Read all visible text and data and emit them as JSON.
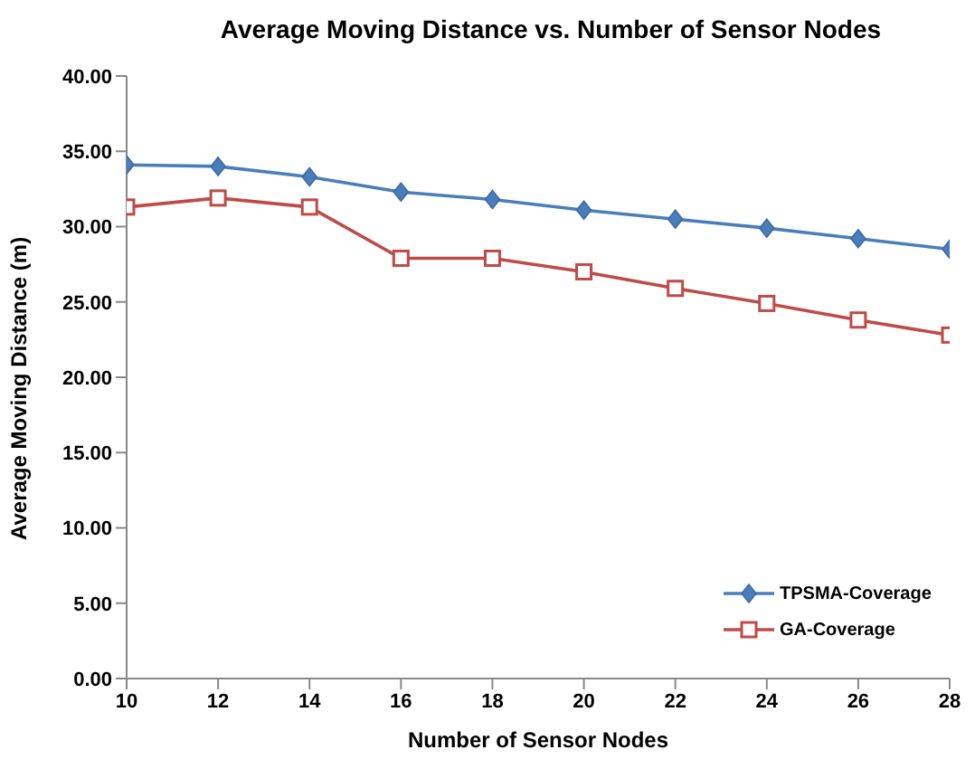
{
  "chart_data": {
    "type": "line",
    "title": "Average Moving Distance vs. Number of Sensor Nodes",
    "xlabel": "Number of Sensor Nodes",
    "ylabel": "Average Moving Distance (m)",
    "x": [
      10,
      12,
      14,
      16,
      18,
      20,
      22,
      24,
      26,
      28
    ],
    "series": [
      {
        "name": "TPSMA-Coverage",
        "color": "#4a7ebb",
        "marker": "diamond",
        "values": [
          34.1,
          34.0,
          33.3,
          32.3,
          31.8,
          31.1,
          30.5,
          29.9,
          29.2,
          28.5
        ]
      },
      {
        "name": "GA-Coverage",
        "color": "#be4b48",
        "marker": "square",
        "values": [
          31.3,
          31.9,
          31.3,
          27.9,
          27.9,
          27.0,
          25.9,
          24.9,
          23.8,
          22.8
        ]
      }
    ],
    "xlim": [
      10,
      28
    ],
    "xticks": [
      10,
      12,
      14,
      16,
      18,
      20,
      22,
      24,
      26,
      28
    ],
    "ylim": [
      0,
      40
    ],
    "yticks": [
      {
        "value": 0,
        "label": "0.00"
      },
      {
        "value": 5,
        "label": "5.00"
      },
      {
        "value": 10,
        "label": "10.00"
      },
      {
        "value": 15,
        "label": "15.00"
      },
      {
        "value": 20,
        "label": "20.00"
      },
      {
        "value": 25,
        "label": "25.00"
      },
      {
        "value": 30,
        "label": "30.00"
      },
      {
        "value": 35,
        "label": "35.00"
      },
      {
        "value": 40,
        "label": "40.00"
      }
    ],
    "grid": false,
    "legend": "bottom right"
  }
}
